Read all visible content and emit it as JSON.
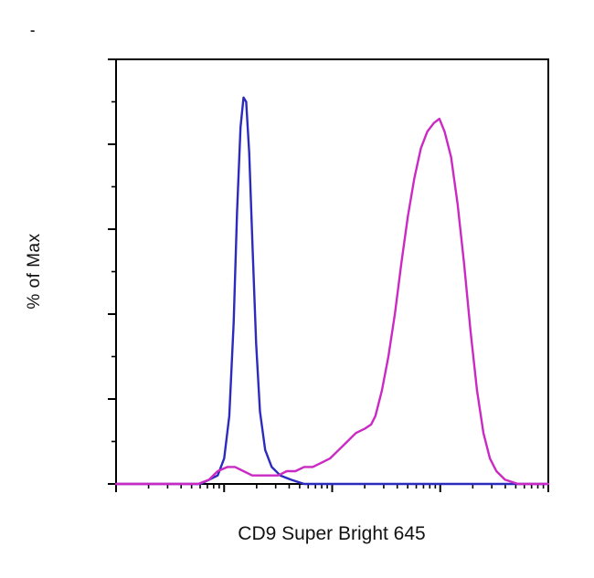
{
  "artifact_mark": "-",
  "chart_data": {
    "type": "line",
    "subtype": "flow-cytometry-histogram",
    "title": "",
    "xlabel": "CD9 Super Bright 645",
    "ylabel": "% of Max",
    "x_scale": "log",
    "x_decades": 4,
    "ylim": [
      0,
      100
    ],
    "grid": false,
    "legend": "none",
    "axis_color": "#000000",
    "background": "#ffffff",
    "series": [
      {
        "name": "blue-curve",
        "color": "#2b2bbd",
        "points": [
          [
            0.0,
            0
          ],
          [
            0.195,
            0
          ],
          [
            0.215,
            1
          ],
          [
            0.235,
            2
          ],
          [
            0.25,
            6
          ],
          [
            0.262,
            16
          ],
          [
            0.272,
            38
          ],
          [
            0.28,
            64
          ],
          [
            0.288,
            84
          ],
          [
            0.295,
            91
          ],
          [
            0.301,
            90
          ],
          [
            0.308,
            78
          ],
          [
            0.316,
            55
          ],
          [
            0.324,
            33
          ],
          [
            0.333,
            17
          ],
          [
            0.345,
            8
          ],
          [
            0.36,
            4
          ],
          [
            0.38,
            2
          ],
          [
            0.405,
            1
          ],
          [
            0.435,
            0
          ],
          [
            1.0,
            0
          ]
        ]
      },
      {
        "name": "magenta-curve",
        "color": "#cb29c4",
        "points": [
          [
            0.0,
            0
          ],
          [
            0.19,
            0
          ],
          [
            0.215,
            1
          ],
          [
            0.235,
            3
          ],
          [
            0.258,
            4
          ],
          [
            0.275,
            4
          ],
          [
            0.295,
            3
          ],
          [
            0.315,
            2
          ],
          [
            0.335,
            2
          ],
          [
            0.355,
            2
          ],
          [
            0.375,
            2
          ],
          [
            0.395,
            3
          ],
          [
            0.415,
            3
          ],
          [
            0.435,
            4
          ],
          [
            0.455,
            4
          ],
          [
            0.475,
            5
          ],
          [
            0.495,
            6
          ],
          [
            0.515,
            8
          ],
          [
            0.535,
            10
          ],
          [
            0.555,
            12
          ],
          [
            0.575,
            13
          ],
          [
            0.59,
            14
          ],
          [
            0.6,
            16
          ],
          [
            0.615,
            22
          ],
          [
            0.63,
            30
          ],
          [
            0.645,
            40
          ],
          [
            0.66,
            52
          ],
          [
            0.675,
            63
          ],
          [
            0.69,
            72
          ],
          [
            0.705,
            79
          ],
          [
            0.72,
            83
          ],
          [
            0.735,
            85
          ],
          [
            0.748,
            86
          ],
          [
            0.76,
            83
          ],
          [
            0.775,
            77
          ],
          [
            0.79,
            66
          ],
          [
            0.805,
            52
          ],
          [
            0.82,
            36
          ],
          [
            0.835,
            22
          ],
          [
            0.85,
            12
          ],
          [
            0.865,
            6
          ],
          [
            0.88,
            3
          ],
          [
            0.9,
            1
          ],
          [
            0.93,
            0
          ],
          [
            1.0,
            0
          ]
        ]
      }
    ]
  }
}
